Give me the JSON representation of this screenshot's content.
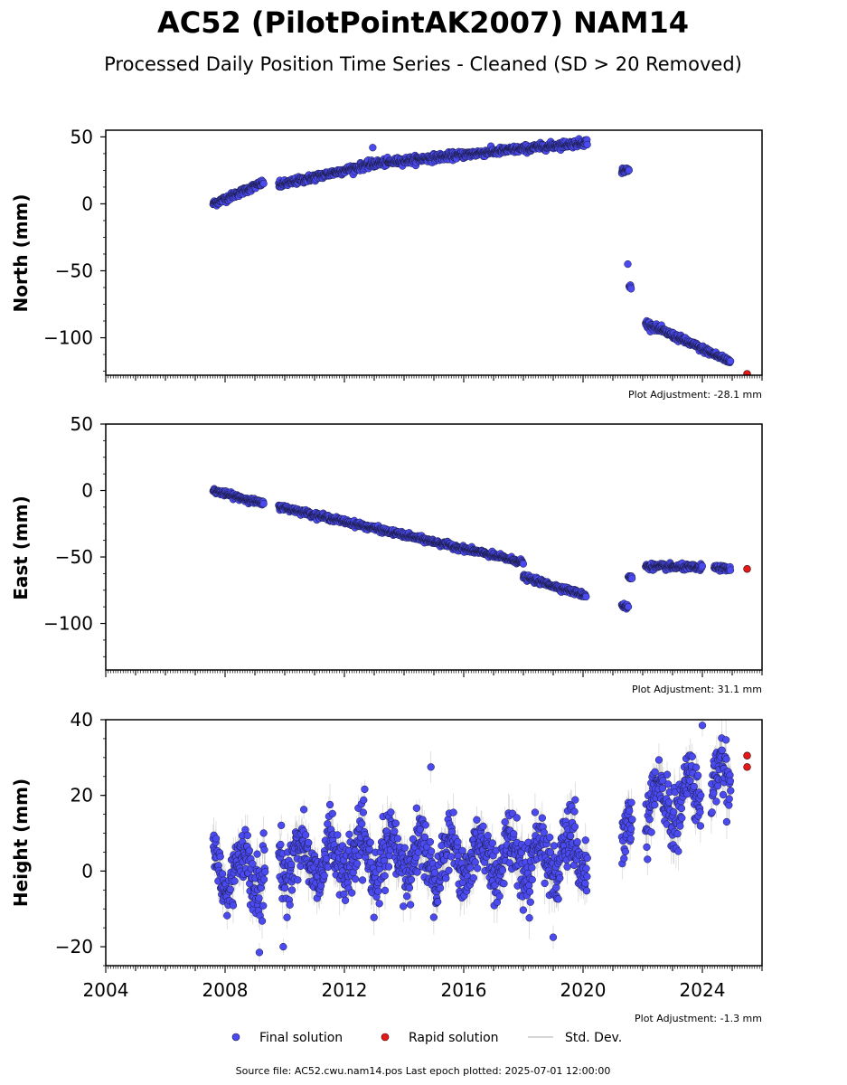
{
  "title": "AC52 (PilotPointAK2007) NAM14",
  "subtitle": "Processed Daily Position Time Series - Cleaned (SD > 20 Removed)",
  "legend": {
    "final_label": "Final solution",
    "rapid_label": "Rapid solution",
    "std_label": "Std. Dev."
  },
  "source_text": "Source file: AC52.cwu.nam14.pos  Last epoch plotted: 2025-07-01 12:00:00",
  "colors": {
    "final": "#4a4af0",
    "final_edge": "#1a1a40",
    "rapid": "#e41a1a",
    "std": "#b0b0b0"
  },
  "chart_data": [
    {
      "type": "scatter",
      "panel": "north",
      "ylabel": "North (mm)",
      "adjustment": "Plot Adjustment: -28.1 mm",
      "xlim": [
        2004.0,
        2026.0
      ],
      "ylim": [
        -128,
        55
      ],
      "yticks": [
        50,
        0,
        -50,
        -100
      ],
      "ytick_labels": [
        "50",
        "0",
        "−50",
        "−100"
      ],
      "final_segments": [
        {
          "x0": 2007.6,
          "x1": 2009.3,
          "y0": 0,
          "y1": 16,
          "noise": 2.0
        },
        {
          "x0": 2009.8,
          "x1": 2013.0,
          "y0": 14,
          "y1": 30,
          "noise": 2.2
        },
        {
          "x0": 2013.0,
          "x1": 2020.15,
          "y0": 30,
          "y1": 46,
          "noise": 2.2
        },
        {
          "x0": 2021.3,
          "x1": 2021.55,
          "y0": 25,
          "y1": 25,
          "noise": 1.8
        },
        {
          "x0": 2021.55,
          "x1": 2021.62,
          "y0": -62,
          "y1": -62,
          "noise": 2.0
        },
        {
          "x0": 2022.1,
          "x1": 2024.95,
          "y0": -89,
          "y1": -118,
          "noise": 2.0
        }
      ],
      "final_points": [
        [
          2012.95,
          42
        ],
        [
          2021.5,
          -45
        ]
      ],
      "rapid_points": [
        [
          2025.5,
          -127
        ]
      ]
    },
    {
      "type": "scatter",
      "panel": "east",
      "ylabel": "East (mm)",
      "adjustment": "Plot Adjustment: 31.1 mm",
      "xlim": [
        2004.0,
        2026.0
      ],
      "ylim": [
        -135,
        50
      ],
      "yticks": [
        50,
        0,
        -50,
        -100
      ],
      "ytick_labels": [
        "50",
        "0",
        "−50",
        "−100"
      ],
      "final_segments": [
        {
          "x0": 2007.6,
          "x1": 2009.3,
          "y0": 0,
          "y1": -10,
          "noise": 1.5
        },
        {
          "x0": 2009.8,
          "x1": 2018.0,
          "y0": -12,
          "y1": -54,
          "noise": 1.6
        },
        {
          "x0": 2018.0,
          "x1": 2020.1,
          "y0": -65,
          "y1": -79,
          "noise": 1.6
        },
        {
          "x0": 2021.3,
          "x1": 2021.52,
          "y0": -86,
          "y1": -88,
          "noise": 1.8
        },
        {
          "x0": 2021.52,
          "x1": 2021.65,
          "y0": -65,
          "y1": -66,
          "noise": 1.5
        },
        {
          "x0": 2022.1,
          "x1": 2024.0,
          "y0": -57,
          "y1": -58,
          "noise": 1.8
        },
        {
          "x0": 2024.4,
          "x1": 2024.95,
          "y0": -58,
          "y1": -59,
          "noise": 1.5
        }
      ],
      "final_points": [],
      "rapid_points": [
        [
          2025.5,
          -59
        ]
      ]
    },
    {
      "type": "scatter",
      "panel": "height",
      "ylabel": "Height (mm)",
      "adjustment": "Plot Adjustment: -1.3 mm",
      "xlim": [
        2004.0,
        2026.0
      ],
      "ylim": [
        -25,
        40
      ],
      "yticks": [
        40,
        20,
        0,
        -20
      ],
      "ytick_labels": [
        "40",
        "20",
        "0",
        "−20"
      ],
      "xticks": [
        2004,
        2008,
        2012,
        2016,
        2020,
        2024
      ],
      "xtick_labels": [
        "2004",
        "2008",
        "2012",
        "2016",
        "2020",
        "2024"
      ],
      "final_segments": [
        {
          "x0": 2007.6,
          "x1": 2009.35,
          "y0": 0,
          "y1": 0,
          "noise": 7.0,
          "seasonal": 6.0
        },
        {
          "x0": 2009.8,
          "x1": 2020.15,
          "y0": 3,
          "y1": 4,
          "noise": 6.5,
          "seasonal": 5.0
        },
        {
          "x0": 2021.3,
          "x1": 2021.65,
          "y0": 6,
          "y1": 12,
          "noise": 6.0,
          "seasonal": 3.0
        },
        {
          "x0": 2022.1,
          "x1": 2023.95,
          "y0": 16,
          "y1": 20,
          "noise": 7.0,
          "seasonal": 6.0
        },
        {
          "x0": 2024.3,
          "x1": 2024.95,
          "y0": 20,
          "y1": 27,
          "noise": 6.5,
          "seasonal": 5.0
        }
      ],
      "final_points": [
        [
          2009.15,
          -21.5
        ],
        [
          2009.95,
          -20
        ],
        [
          2014.9,
          27.5
        ],
        [
          2019.0,
          -17.5
        ],
        [
          2024.0,
          38.5
        ]
      ],
      "rapid_points": [
        [
          2025.5,
          30.5
        ],
        [
          2025.5,
          27.5
        ]
      ]
    }
  ]
}
